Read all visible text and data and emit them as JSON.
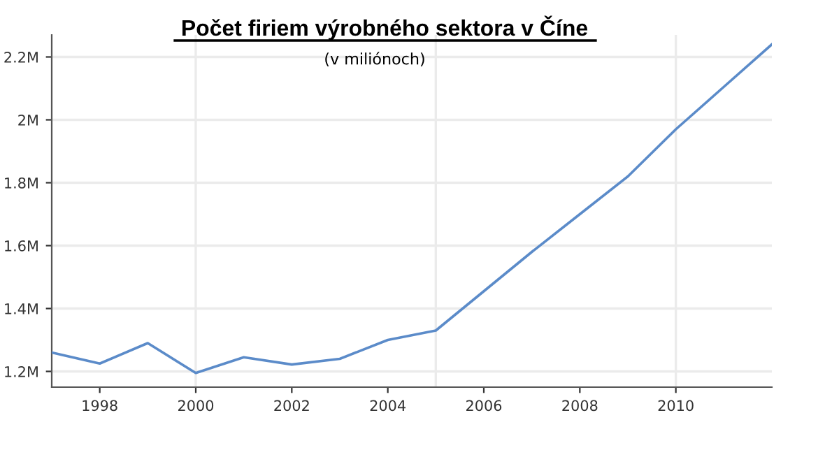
{
  "chart_data": {
    "type": "line",
    "title": "Počet firiem výrobného sektora v Číne",
    "subtitle": "(v miliónoch)",
    "x": [
      1997,
      1998,
      1999,
      2000,
      2001,
      2002,
      2003,
      2004,
      2005,
      2006,
      2007,
      2008,
      2009,
      2010,
      2011,
      2012
    ],
    "series": [
      {
        "color": "#5b8bc9",
        "values": [
          1.26,
          1.225,
          1.29,
          1.195,
          1.245,
          1.222,
          1.24,
          1.3,
          1.33,
          1.455,
          1.58,
          1.7,
          1.82,
          1.97,
          2.105,
          2.24
        ]
      }
    ],
    "xlim": [
      1997,
      2012
    ],
    "xticks": [
      1998,
      2000,
      2002,
      2004,
      2006,
      2008,
      2010
    ],
    "ylim": [
      1.15,
      2.27
    ],
    "yticks": [
      {
        "value": 1.2,
        "label": "1.2M"
      },
      {
        "value": 1.4,
        "label": "1.4M"
      },
      {
        "value": 1.6,
        "label": "1.6M"
      },
      {
        "value": 1.8,
        "label": "1.8M"
      },
      {
        "value": 2.0,
        "label": "2M"
      },
      {
        "value": 2.2,
        "label": "2.2M"
      }
    ],
    "grid": "y",
    "ref_lines": [
      {
        "axis": "x",
        "value": 2000,
        "color": "#ebebeb"
      },
      {
        "axis": "x",
        "value": 2005,
        "color": "#ebebeb"
      },
      {
        "axis": "x",
        "value": 2010,
        "color": "#ebebeb"
      }
    ],
    "legend": false,
    "marker": "none",
    "line_style": "solid"
  }
}
